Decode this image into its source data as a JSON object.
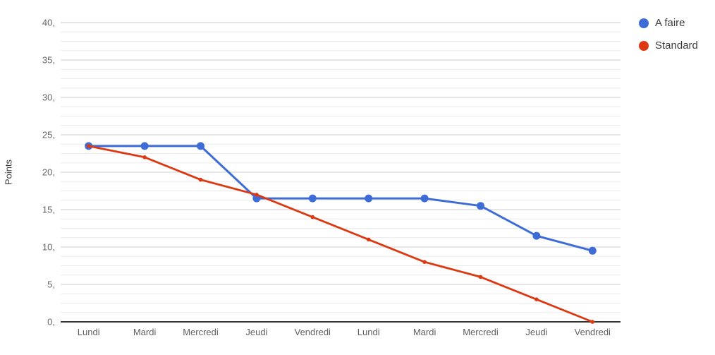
{
  "chart_data": {
    "type": "line",
    "title": "",
    "ylabel": "Points",
    "xlabel": "",
    "categories": [
      "Lundi",
      "Mardi",
      "Mercredi",
      "Jeudi",
      "Vendredi",
      "Lundi",
      "Mardi",
      "Mercredi",
      "Jeudi",
      "Vendredi"
    ],
    "series": [
      {
        "name": "A faire",
        "color": "#3d6cd7",
        "values": [
          23.5,
          23.5,
          23.5,
          16.5,
          16.5,
          16.5,
          16.5,
          15.5,
          11.5,
          9.5
        ],
        "marker_radius": 5.5,
        "line_width": 3
      },
      {
        "name": "Standard",
        "color": "#dc3912",
        "values": [
          23.5,
          22,
          19,
          17,
          14,
          11,
          8,
          6,
          3,
          0
        ],
        "marker_radius": 2.8,
        "line_width": 2.8
      }
    ],
    "ylim": [
      0,
      40
    ],
    "y_major_step": 5,
    "y_minor_step": 1.25,
    "y_tick_labels": [
      "0,",
      "5,",
      "10,",
      "15,",
      "20,",
      "25,",
      "30,",
      "35,",
      "40,"
    ],
    "grid": true,
    "legend_position": "top-right",
    "colors": {
      "major_gridline": "#cccccc",
      "minor_gridline": "#ebebeb",
      "axis_line": "#333333",
      "tick_label": "#666666"
    }
  }
}
